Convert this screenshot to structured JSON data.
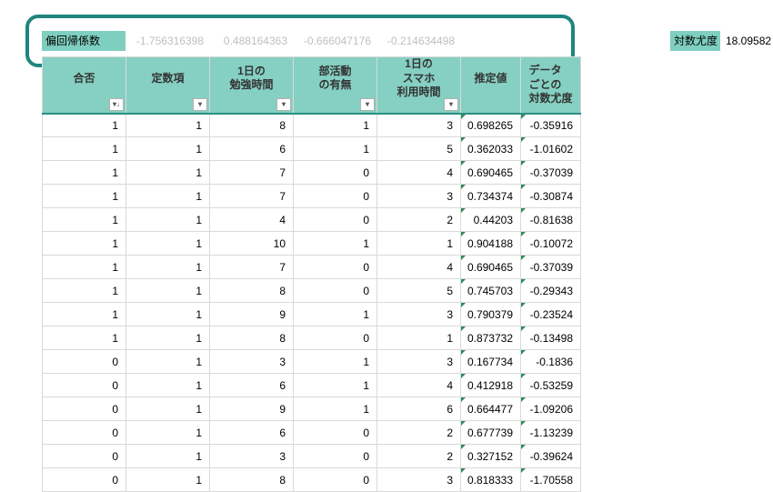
{
  "coef": {
    "label": "偏回帰係数",
    "values": [
      "-1.756316398",
      "0.488164363",
      "-0.666047176",
      "-0.214634498"
    ]
  },
  "loglik": {
    "label": "対数尤度",
    "value": "18.09582"
  },
  "headers": {
    "c1": "合否",
    "c2": "定数項",
    "c3_l1": "1日の",
    "c3_l2": "勉強時間",
    "c4_l1": "部活動",
    "c4_l2": "の有無",
    "c5_l1": "1日の",
    "c5_l2": "スマホ",
    "c5_l3": "利用時間",
    "c6": "推定値",
    "c7_l1": "データ",
    "c7_l2": "ごとの",
    "c7_l3": "対数尤度"
  },
  "filter_glyph_sort": "▾↓",
  "filter_glyph": "▾",
  "rows": [
    {
      "a": "1",
      "b": "1",
      "c": "8",
      "d": "1",
      "e": "3",
      "f": "0.698265",
      "g": "-0.35916"
    },
    {
      "a": "1",
      "b": "1",
      "c": "6",
      "d": "1",
      "e": "5",
      "f": "0.362033",
      "g": "-1.01602"
    },
    {
      "a": "1",
      "b": "1",
      "c": "7",
      "d": "0",
      "e": "4",
      "f": "0.690465",
      "g": "-0.37039"
    },
    {
      "a": "1",
      "b": "1",
      "c": "7",
      "d": "0",
      "e": "3",
      "f": "0.734374",
      "g": "-0.30874"
    },
    {
      "a": "1",
      "b": "1",
      "c": "4",
      "d": "0",
      "e": "2",
      "f": "0.44203",
      "g": "-0.81638"
    },
    {
      "a": "1",
      "b": "1",
      "c": "10",
      "d": "1",
      "e": "1",
      "f": "0.904188",
      "g": "-0.10072"
    },
    {
      "a": "1",
      "b": "1",
      "c": "7",
      "d": "0",
      "e": "4",
      "f": "0.690465",
      "g": "-0.37039"
    },
    {
      "a": "1",
      "b": "1",
      "c": "8",
      "d": "0",
      "e": "5",
      "f": "0.745703",
      "g": "-0.29343"
    },
    {
      "a": "1",
      "b": "1",
      "c": "9",
      "d": "1",
      "e": "3",
      "f": "0.790379",
      "g": "-0.23524"
    },
    {
      "a": "1",
      "b": "1",
      "c": "8",
      "d": "0",
      "e": "1",
      "f": "0.873732",
      "g": "-0.13498"
    },
    {
      "a": "0",
      "b": "1",
      "c": "3",
      "d": "1",
      "e": "3",
      "f": "0.167734",
      "g": "-0.1836"
    },
    {
      "a": "0",
      "b": "1",
      "c": "6",
      "d": "1",
      "e": "4",
      "f": "0.412918",
      "g": "-0.53259"
    },
    {
      "a": "0",
      "b": "1",
      "c": "9",
      "d": "1",
      "e": "6",
      "f": "0.664477",
      "g": "-1.09206"
    },
    {
      "a": "0",
      "b": "1",
      "c": "6",
      "d": "0",
      "e": "2",
      "f": "0.677739",
      "g": "-1.13239"
    },
    {
      "a": "0",
      "b": "1",
      "c": "3",
      "d": "0",
      "e": "2",
      "f": "0.327152",
      "g": "-0.39624"
    },
    {
      "a": "0",
      "b": "1",
      "c": "8",
      "d": "0",
      "e": "3",
      "f": "0.818333",
      "g": "-1.70558"
    }
  ],
  "colors": {
    "teal_header": "#85d0c2",
    "teal_border": "#20847f",
    "faded_text": "#bfbfbf",
    "grid": "#d9d9d9"
  }
}
